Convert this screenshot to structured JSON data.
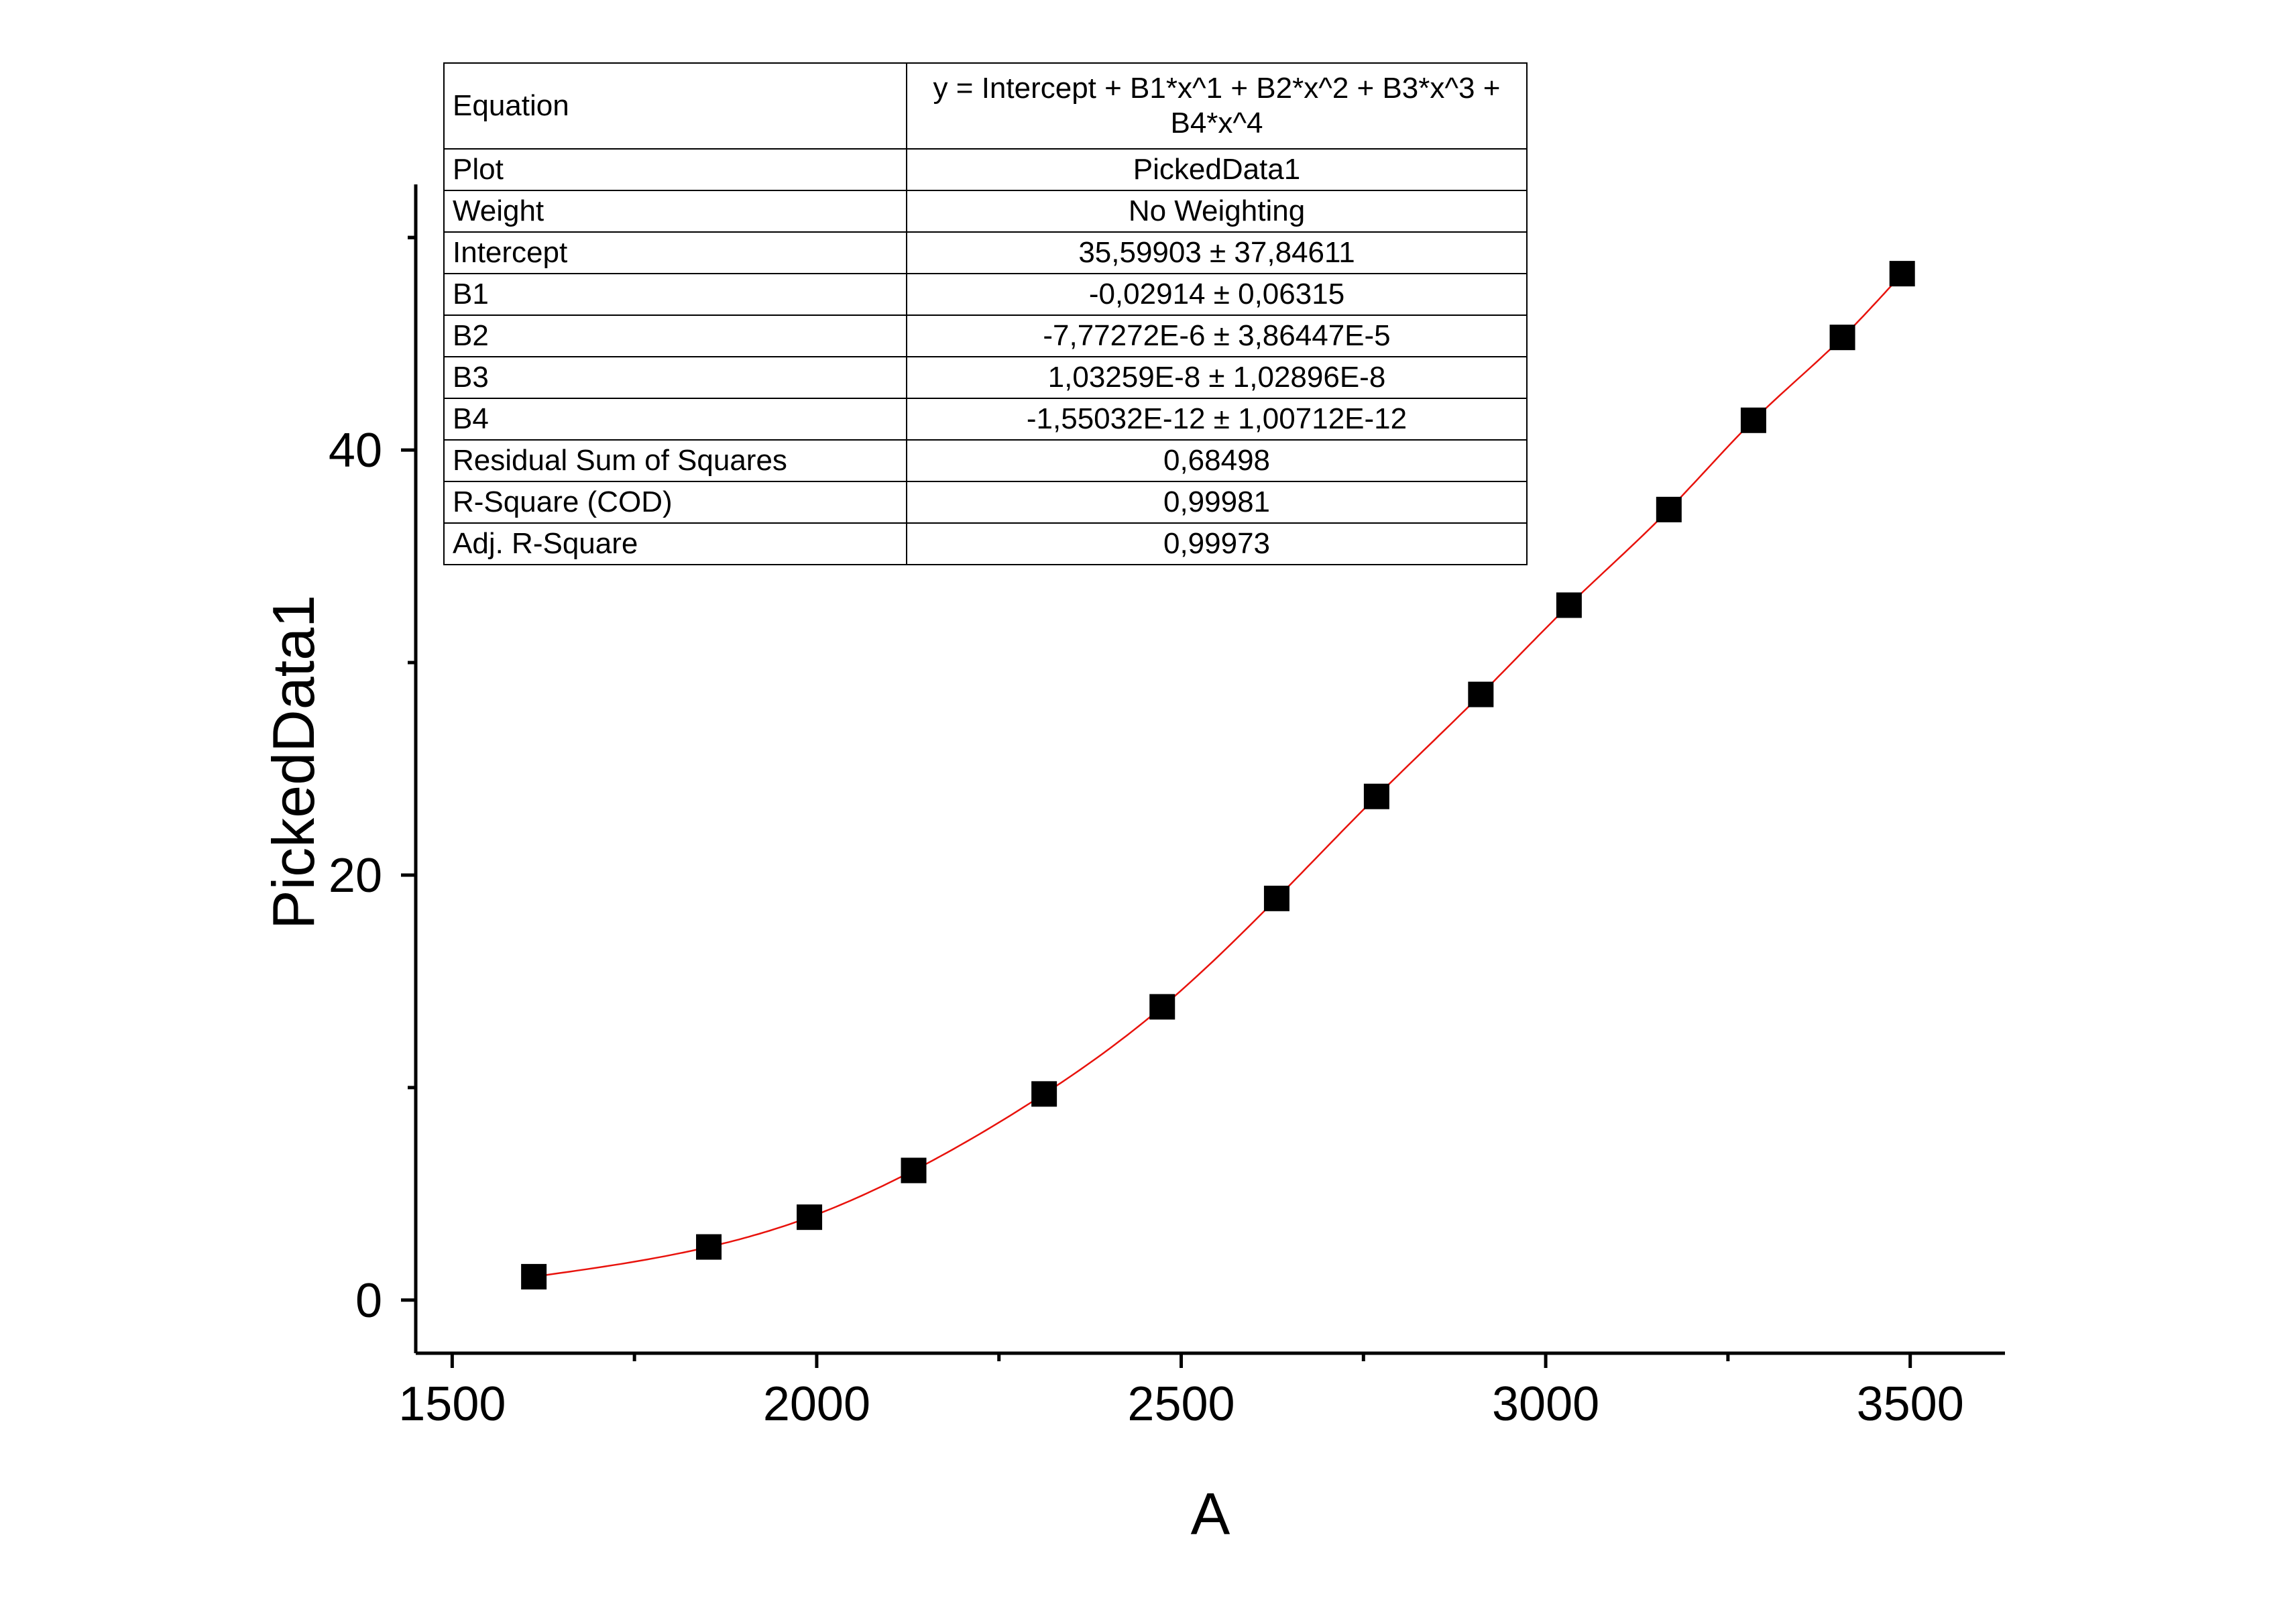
{
  "chart_data": {
    "type": "scatter",
    "xlabel": "A",
    "ylabel": "PickedData1",
    "xlim": [
      1450,
      3630
    ],
    "ylim": [
      -2.5,
      52.5
    ],
    "x_ticks": [
      1500,
      2000,
      2500,
      3000,
      3500
    ],
    "y_ticks": [
      0,
      20,
      40
    ],
    "x_tick_labels": [
      "1500",
      "2000",
      "2500",
      "3000",
      "3500"
    ],
    "y_tick_labels": [
      "0",
      "20",
      "40"
    ],
    "grid": false,
    "legend": false,
    "series": [
      {
        "marker": "square",
        "color": "#000000",
        "x": [
          1612,
          1852,
          1990,
          2133,
          2312,
          2474,
          2631,
          2768,
          2911,
          3032,
          3169,
          3285,
          3407,
          3489
        ],
        "y": [
          1.1,
          2.5,
          3.9,
          6.1,
          9.7,
          13.8,
          18.9,
          23.7,
          28.5,
          32.7,
          37.2,
          41.4,
          45.3,
          48.3
        ]
      },
      {
        "type": "line",
        "color": "#e8120c",
        "fit": "polynomial"
      }
    ],
    "fit_coefficients": {
      "intercept": 35.59903,
      "b1": -0.02914,
      "b2": -7.77272e-06,
      "b3": 1.03259e-08,
      "b4": -1.55032e-12
    }
  },
  "fit_table": {
    "rows": [
      {
        "key": "Equation",
        "value": "y = Intercept + B1*x^1 + B2*x^2 + B3*x^3 + B4*x^4"
      },
      {
        "key": "Plot",
        "value": "PickedData1"
      },
      {
        "key": "Weight",
        "value": "No Weighting"
      },
      {
        "key": "Intercept",
        "value": "35,59903 ± 37,84611"
      },
      {
        "key": "B1",
        "value": "-0,02914 ± 0,06315"
      },
      {
        "key": "B2",
        "value": "-7,77272E-6 ± 3,86447E-5"
      },
      {
        "key": "B3",
        "value": "1,03259E-8 ± 1,02896E-8"
      },
      {
        "key": "B4",
        "value": "-1,55032E-12 ± 1,00712E-12"
      },
      {
        "key": "Residual Sum of Squares",
        "value": "0,68498"
      },
      {
        "key": "R-Square (COD)",
        "value": "0,99981"
      },
      {
        "key": "Adj. R-Square",
        "value": "0,99973"
      }
    ]
  }
}
